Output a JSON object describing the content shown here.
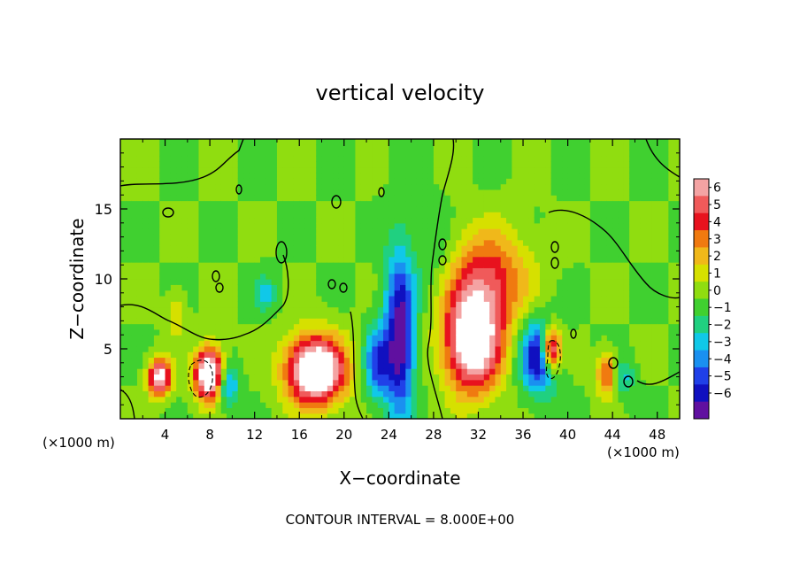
{
  "chart_data": {
    "type": "heatmap",
    "title": "vertical velocity",
    "xlabel": "X−coordinate",
    "ylabel": "Z−coordinate",
    "x_unit_left": "(×1000 m)",
    "x_unit_right": "(×1000 m)",
    "footer": "CONTOUR INTERVAL = 8.000E+00",
    "xlim": [
      0,
      50
    ],
    "ylim": [
      0,
      20
    ],
    "x_ticks": [
      4,
      8,
      12,
      16,
      20,
      24,
      28,
      32,
      36,
      40,
      44,
      48
    ],
    "y_ticks": [
      5,
      10,
      15
    ],
    "colorbar": {
      "range": [
        -6,
        6
      ],
      "labels": [
        "6",
        "5",
        "4",
        "3",
        "2",
        "1",
        "0",
        "−1",
        "−2",
        "−3",
        "−4",
        "−5",
        "−6"
      ],
      "colors": [
        "#f4a3a3",
        "#f05a5a",
        "#e8121e",
        "#f07a10",
        "#f0b81a",
        "#d6e000",
        "#90dd10",
        "#40d030",
        "#20d080",
        "#10c8e8",
        "#1a90f0",
        "#2040e8",
        "#1010c0",
        "#6010a0"
      ]
    },
    "field_features": [
      {
        "kind": "updraft",
        "x": 17.5,
        "z": 3.5,
        "sx": 2.6,
        "sz": 2.4,
        "w": 9
      },
      {
        "kind": "updraft",
        "x": 31.5,
        "z": 5.5,
        "sx": 2.5,
        "sz": 3.5,
        "w": 8
      },
      {
        "kind": "updraft",
        "x": 33,
        "z": 10,
        "sx": 3.5,
        "sz": 3.5,
        "w": 4
      },
      {
        "kind": "updraft",
        "x": 8,
        "z": 3.2,
        "sx": 1.3,
        "sz": 1.8,
        "w": 9
      },
      {
        "kind": "updraft",
        "x": 3.5,
        "z": 3,
        "sx": 1.0,
        "sz": 1.3,
        "w": 7
      },
      {
        "kind": "updraft",
        "x": 43.5,
        "z": 3.2,
        "sx": 0.9,
        "sz": 1.5,
        "w": 4
      },
      {
        "kind": "updraft",
        "x": 5,
        "z": 7.5,
        "sx": 0.8,
        "sz": 1.5,
        "w": 2
      },
      {
        "kind": "updraft",
        "x": 38.5,
        "z": 5,
        "sx": 0.9,
        "sz": 1.6,
        "w": 8
      },
      {
        "kind": "downdraft",
        "x": 25,
        "z": 6,
        "sx": 1.3,
        "sz": 6,
        "w": -6
      },
      {
        "kind": "downdraft",
        "x": 37.5,
        "z": 4.5,
        "sx": 1.6,
        "sz": 2.5,
        "w": -6
      },
      {
        "kind": "downdraft",
        "x": 9.5,
        "z": 2.5,
        "sx": 1.0,
        "sz": 1.5,
        "w": -4
      },
      {
        "kind": "downdraft",
        "x": 23,
        "z": 4,
        "sx": 1.2,
        "sz": 2.5,
        "w": -4
      },
      {
        "kind": "downdraft",
        "x": 13,
        "z": 9,
        "sx": 1.0,
        "sz": 1.2,
        "w": -2
      },
      {
        "kind": "downdraft",
        "x": 45,
        "z": 3,
        "sx": 1.0,
        "sz": 1.3,
        "w": -2
      },
      {
        "kind": "downdraft",
        "x": 28,
        "z": 12,
        "sx": 1.5,
        "sz": 3,
        "w": -1
      }
    ]
  }
}
